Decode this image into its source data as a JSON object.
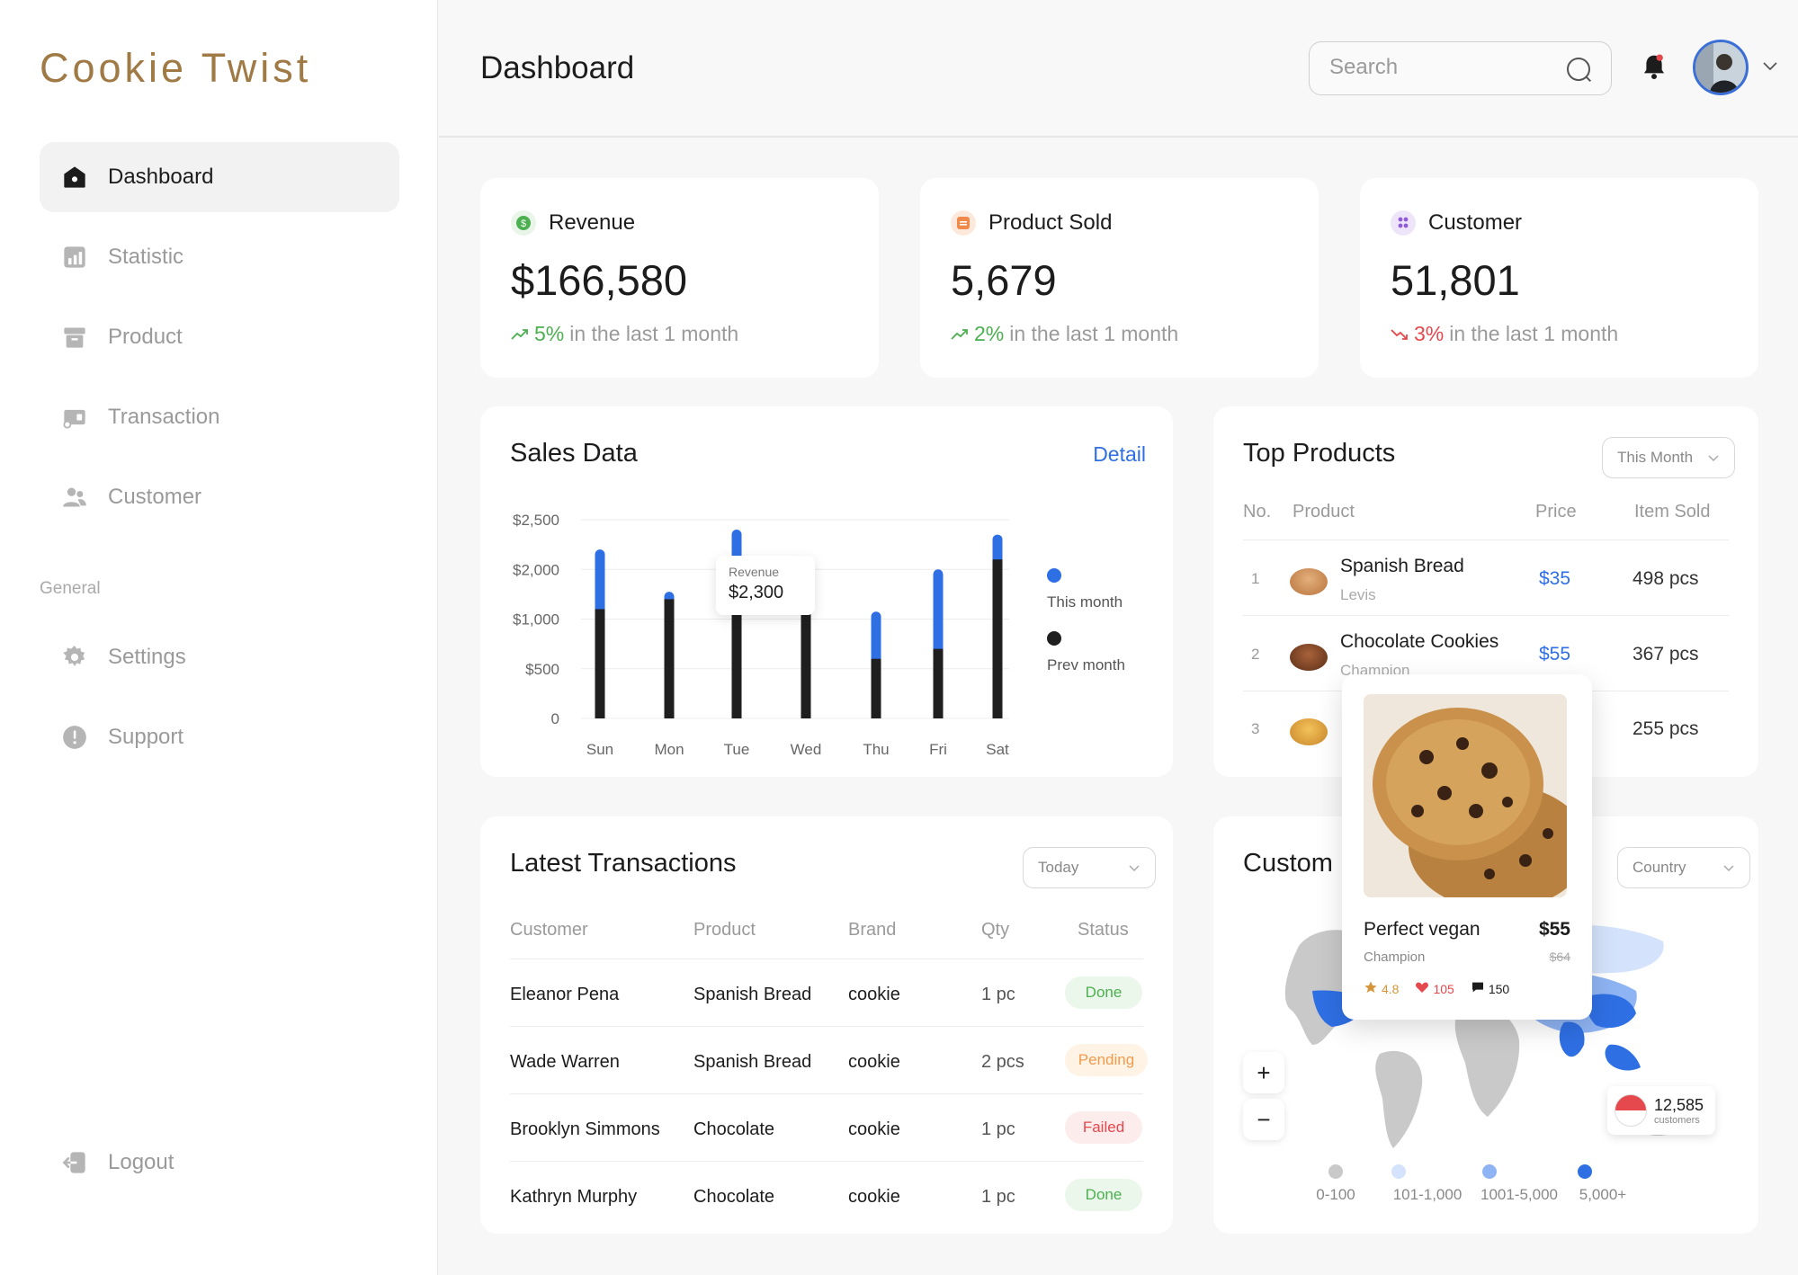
{
  "brand": "Cookie Twist",
  "nav": {
    "items": [
      {
        "label": "Dashboard",
        "icon": "home-icon"
      },
      {
        "label": "Statistic",
        "icon": "chart-icon"
      },
      {
        "label": "Product",
        "icon": "archive-icon"
      },
      {
        "label": "Transaction",
        "icon": "wallet-icon"
      },
      {
        "label": "Customer",
        "icon": "users-icon"
      }
    ],
    "section_label": "General",
    "general": [
      {
        "label": "Settings",
        "icon": "gear-icon"
      },
      {
        "label": "Support",
        "icon": "alert-icon"
      }
    ],
    "logout": "Logout"
  },
  "header": {
    "title": "Dashboard",
    "search_placeholder": "Search"
  },
  "stats": [
    {
      "title": "Revenue",
      "value": "$166,580",
      "pct": "5%",
      "suffix": "in the last 1 month",
      "trend": "up"
    },
    {
      "title": "Product Sold",
      "value": "5,679",
      "pct": "2%",
      "suffix": "in the last 1 month",
      "trend": "up"
    },
    {
      "title": "Customer",
      "value": "51,801",
      "pct": "3%",
      "suffix": "in the last 1 month",
      "trend": "down"
    }
  ],
  "sales": {
    "title": "Sales Data",
    "detail": "Detail",
    "tooltip_label": "Revenue",
    "tooltip_value": "$2,300"
  },
  "chart_data": {
    "type": "bar",
    "categories": [
      "Sun",
      "Mon",
      "Tue",
      "Wed",
      "Thu",
      "Fri",
      "Sat"
    ],
    "y_ticks": [
      "0",
      "$500",
      "$1,000",
      "$2,000",
      "$2,500"
    ],
    "ylim": [
      0,
      2500
    ],
    "series": [
      {
        "name": "This month",
        "color": "#2f6fe4",
        "values": [
          2200,
          1550,
          2400,
          1250,
          1150,
          2000,
          2350
        ]
      },
      {
        "name": "Prev month",
        "color": "#1f1f1f",
        "values": [
          1200,
          1400,
          2050,
          1300,
          600,
          700,
          2100
        ]
      }
    ],
    "grid": true,
    "legend": "right"
  },
  "top_products": {
    "title": "Top Products",
    "filter": "This Month",
    "headers": [
      "No.",
      "Product",
      "Price",
      "Item Sold"
    ],
    "rows": [
      {
        "no": "1",
        "name": "Spanish Bread",
        "brand": "Levis",
        "price": "$35",
        "sold": "498 pcs"
      },
      {
        "no": "2",
        "name": "Chocolate Cookies",
        "brand": "Champion",
        "price": "$55",
        "sold": "367 pcs"
      },
      {
        "no": "3",
        "name": "",
        "brand": "",
        "price": "",
        "sold": "255 pcs"
      }
    ]
  },
  "popup": {
    "name": "Perfect vegan",
    "price": "$55",
    "brand": "Champion",
    "old_price": "$64",
    "rating": "4.8",
    "likes": "105",
    "comments": "150"
  },
  "transactions": {
    "title": "Latest Transactions",
    "filter": "Today",
    "headers": [
      "Customer",
      "Product",
      "Brand",
      "Qty",
      "Status"
    ],
    "rows": [
      {
        "customer": "Eleanor Pena",
        "product": "Spanish Bread",
        "brand": "cookie",
        "qty": "1 pc",
        "status": "Done"
      },
      {
        "customer": "Wade Warren",
        "product": "Spanish Bread",
        "brand": "cookie",
        "qty": "2 pcs",
        "status": "Pending"
      },
      {
        "customer": "Brooklyn Simmons",
        "product": "Chocolate",
        "brand": "cookie",
        "qty": "1 pc",
        "status": "Failed"
      },
      {
        "customer": "Kathryn Murphy",
        "product": "Chocolate",
        "brand": "cookie",
        "qty": "1 pc",
        "status": "Done"
      }
    ]
  },
  "customers_map": {
    "title": "Custom",
    "filter": "Country",
    "zoom_in": "+",
    "zoom_out": "−",
    "badge_count": "12,585",
    "badge_label": "customers",
    "legend": [
      {
        "label": "0-100",
        "color": "#c9c9c9"
      },
      {
        "label": "101-1,000",
        "color": "#d4e3fb"
      },
      {
        "label": "1001-5,000",
        "color": "#8fb4f3"
      },
      {
        "label": "5,000+",
        "color": "#2f6fe4"
      }
    ]
  }
}
